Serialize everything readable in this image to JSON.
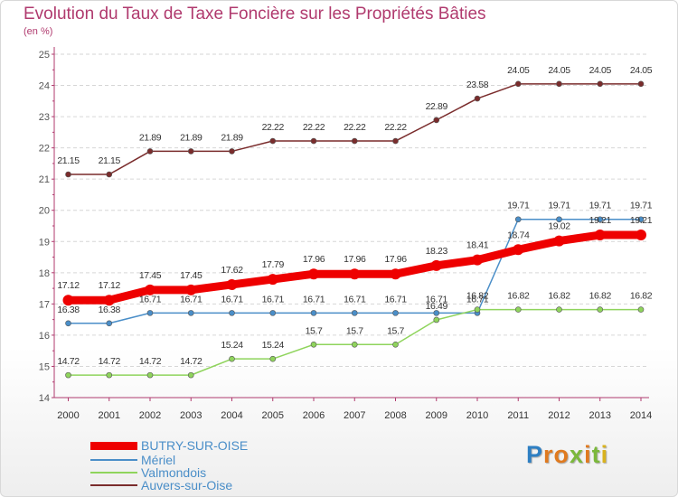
{
  "title": "Evolution du Taux de Taxe Foncière sur les Propriétés Bâties",
  "subtitle": "(en %)",
  "logo": {
    "text": "Proxiti",
    "letters": [
      "P",
      "r",
      "o",
      "x",
      "i",
      "t",
      "i"
    ],
    "colors": [
      "#2e7fc3",
      "#e07a1f",
      "#e07a1f",
      "#7bb83b",
      "#e07a1f",
      "#7bb83b",
      "#d9b21e"
    ]
  },
  "chart_data": {
    "type": "line",
    "title": "Evolution du Taux de Taxe Foncière sur les Propriétés Bâties",
    "ylabel": "(en %)",
    "xlabel": "",
    "categories": [
      "2000",
      "2001",
      "2002",
      "2003",
      "2004",
      "2005",
      "2006",
      "2007",
      "2008",
      "2009",
      "2010",
      "2011",
      "2012",
      "2013",
      "2014"
    ],
    "ylim": [
      14,
      25
    ],
    "yticks": [
      14,
      15,
      16,
      17,
      18,
      19,
      20,
      21,
      22,
      23,
      24,
      25
    ],
    "series": [
      {
        "name": "BUTRY-SUR-OISE",
        "color": "#ee0000",
        "values": [
          17.12,
          17.12,
          17.45,
          17.45,
          17.62,
          17.79,
          17.96,
          17.96,
          17.96,
          18.23,
          18.41,
          18.74,
          19.02,
          19.21,
          19.21
        ],
        "labels": [
          "17.12",
          "17.12",
          "17.45",
          "17.45",
          "17.62",
          "17.79",
          "17.96",
          "17.96",
          "17.96",
          "18.23",
          "18.41",
          "18.74",
          "19.02",
          "19.21",
          "19.21"
        ]
      },
      {
        "name": "Mériel",
        "color": "#4a8ec8",
        "values": [
          16.38,
          16.38,
          16.71,
          16.71,
          16.71,
          16.71,
          16.71,
          16.71,
          16.71,
          16.71,
          16.71,
          19.71,
          19.71,
          19.71,
          19.71
        ],
        "labels": [
          "16.38",
          "16.38",
          "16.71",
          "16.71",
          "16.71",
          "16.71",
          "16.71",
          "16.71",
          "16.71",
          "16.71",
          "16.71",
          "19.71",
          "19.71",
          "19.71",
          "19.71"
        ]
      },
      {
        "name": "Valmondois",
        "color": "#8fd45c",
        "values": [
          14.72,
          14.72,
          14.72,
          14.72,
          15.24,
          15.24,
          15.7,
          15.7,
          15.7,
          16.49,
          16.82,
          16.82,
          16.82,
          16.82,
          16.82
        ],
        "labels": [
          "14.72",
          "14.72",
          "14.72",
          "14.72",
          "15.24",
          "15.24",
          "15.7",
          "15.7",
          "15.7",
          "16.49",
          "16.82",
          "16.82",
          "16.82",
          "16.82",
          "16.82"
        ]
      },
      {
        "name": "Auvers-sur-Oise",
        "color": "#7a2c2c",
        "values": [
          21.15,
          21.15,
          21.89,
          21.89,
          21.89,
          22.22,
          22.22,
          22.22,
          22.22,
          22.89,
          23.58,
          24.05,
          24.05,
          24.05,
          24.05
        ],
        "labels": [
          "21.15",
          "21.15",
          "21.89",
          "21.89",
          "21.89",
          "22.22",
          "22.22",
          "22.22",
          "22.22",
          "22.89",
          "23.58",
          "24.05",
          "24.05",
          "24.05",
          "24.05"
        ]
      }
    ],
    "grid": true,
    "legend": "bottom-left"
  }
}
